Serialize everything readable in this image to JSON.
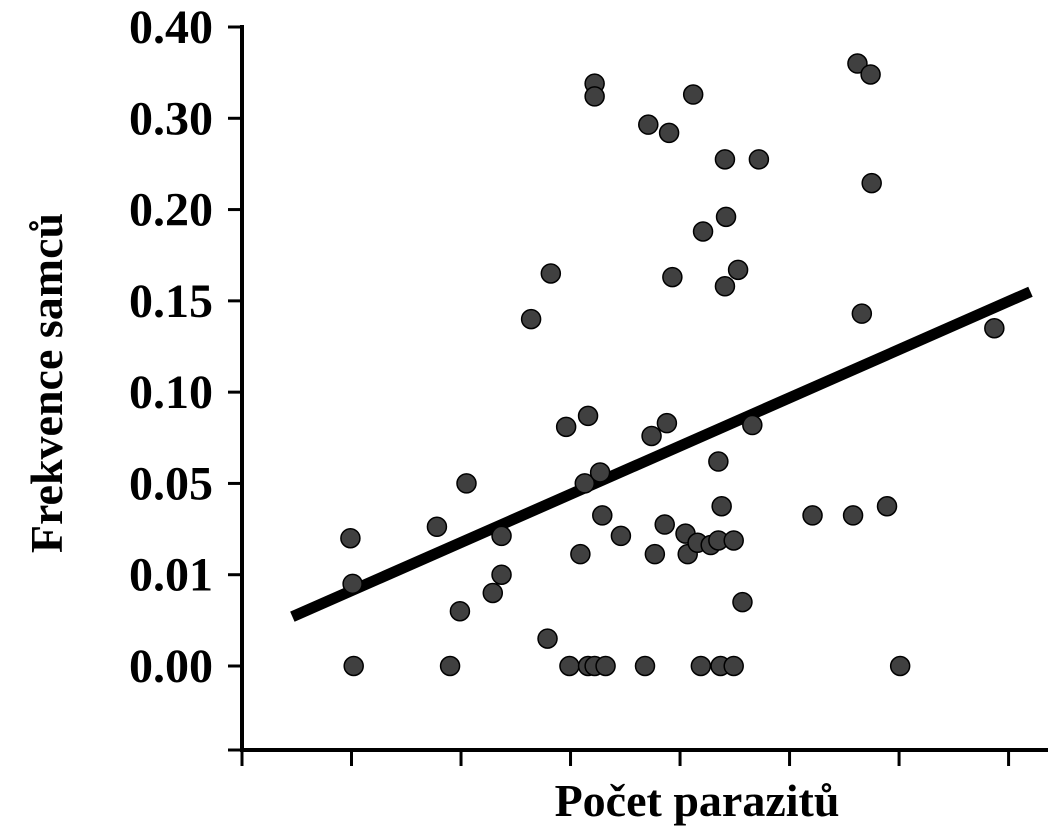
{
  "chart_data": {
    "type": "scatter",
    "xlabel": "Počet parazitů",
    "ylabel": "Frekvence samců",
    "xlim": [
      0,
      7.36
    ],
    "xticks": [
      1,
      2,
      3,
      4,
      5,
      6,
      7
    ],
    "ylim": [
      0,
      0.4
    ],
    "yticks": [
      {
        "value": 0,
        "label": "0.00"
      },
      {
        "value": 0.01,
        "label": "0.01"
      },
      {
        "value": 0.05,
        "label": "0.05"
      },
      {
        "value": 0.1,
        "label": "0.10"
      },
      {
        "value": 0.15,
        "label": "0.15"
      },
      {
        "value": 0.2,
        "label": "0.20"
      },
      {
        "value": 0.3,
        "label": "0.30"
      },
      {
        "value": 0.4,
        "label": "0.40"
      }
    ],
    "color": "#404040",
    "series": [
      {
        "color": "#404040",
        "x": [
          0.99,
          1.01,
          1.02,
          1.78,
          1.9,
          1.99,
          2.05,
          2.29,
          2.37,
          2.37,
          2.64,
          2.79,
          2.82,
          2.96,
          2.99,
          3.09,
          3.13,
          3.16,
          3.16,
          3.22,
          3.22,
          3.22,
          3.27,
          3.29,
          3.32,
          3.46,
          3.68,
          3.71,
          3.74,
          3.77,
          3.86,
          3.88,
          3.9,
          3.93,
          4.05,
          4.07,
          4.12,
          4.16,
          4.19,
          4.21,
          4.28,
          4.35,
          4.35,
          4.37,
          4.38,
          4.41,
          4.42,
          4.41,
          4.49,
          4.49,
          4.53,
          4.57,
          4.66,
          4.72,
          5.21,
          5.58,
          5.62,
          5.66,
          5.74,
          5.75,
          5.89,
          6.01,
          6.87
        ],
        "values": [
          0.026,
          0.009,
          0,
          0.031,
          0,
          0.006,
          0.05,
          0.008,
          0.027,
          0.01,
          0.14,
          0.003,
          0.165,
          0.081,
          0,
          0.019,
          0.05,
          0.087,
          0,
          0.338,
          0.324,
          0,
          0.056,
          0.036,
          0,
          0.027,
          0,
          0.293,
          0.076,
          0.019,
          0.032,
          0.083,
          0.284,
          0.163,
          0.028,
          0.019,
          0.326,
          0.024,
          0,
          0.188,
          0.023,
          0.025,
          0.062,
          0,
          0.04,
          0.255,
          0.196,
          0.158,
          0.025,
          0,
          0.167,
          0.007,
          0.082,
          0.255,
          0.036,
          0.036,
          0.36,
          0.143,
          0.348,
          0.229,
          0.04,
          0,
          0.135
        ]
      }
    ],
    "trendline": {
      "color": "#000000",
      "x": [
        0.46,
        7.2
      ],
      "values": [
        0.0054,
        0.155
      ]
    }
  }
}
